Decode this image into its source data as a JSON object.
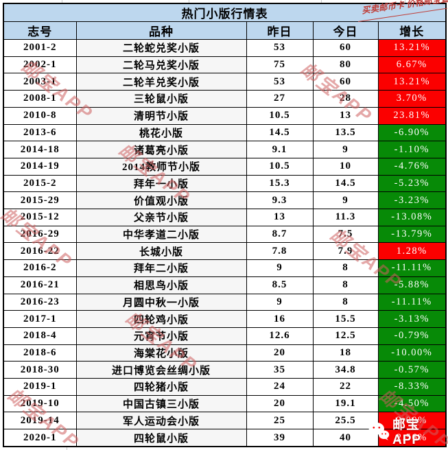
{
  "title": "热门小版行情表",
  "note": "买卖邮币卡 价格邮宝查",
  "watermark": "邮宝APP",
  "logo": {
    "text": "邮宝APP",
    "icon": "wechat-icon"
  },
  "colors": {
    "header_bg": "#BDD7EE",
    "up_red": "#FB0000",
    "down_green": "#078A07",
    "watermark_pink": "#CD5F5F",
    "note_red": "#BE3B35"
  },
  "columns": [
    "志号",
    "品种",
    "昨日",
    "今日",
    "增长"
  ],
  "chart_data": {
    "type": "table",
    "title": "热门小版行情表",
    "categories": [
      "志号",
      "品种",
      "昨日",
      "今日",
      "增长"
    ],
    "rows": "see rows[]"
  },
  "rows": [
    {
      "id": "2001-2",
      "name": "二轮蛇兑奖小版",
      "yesterday": "53",
      "today": "60",
      "change": "13.21%"
    },
    {
      "id": "2002-1",
      "name": "二轮马兑奖小版",
      "yesterday": "75",
      "today": "80",
      "change": "6.67%"
    },
    {
      "id": "2003-1",
      "name": "二轮羊兑奖小版",
      "yesterday": "53",
      "today": "60",
      "change": "13.21%"
    },
    {
      "id": "2008-1",
      "name": "三轮鼠小版",
      "yesterday": "27",
      "today": "28",
      "change": "3.70%"
    },
    {
      "id": "2010-8",
      "name": "清明节小版",
      "yesterday": "10.5",
      "today": "13",
      "change": "23.81%"
    },
    {
      "id": "2013-6",
      "name": "桃花小版",
      "yesterday": "14.5",
      "today": "13.5",
      "change": "-6.90%"
    },
    {
      "id": "2014-18",
      "name": "诸葛亮小版",
      "yesterday": "9.1",
      "today": "9",
      "change": "-1.10%"
    },
    {
      "id": "2014-19",
      "name": "2014教师节小版",
      "yesterday": "10.5",
      "today": "10",
      "change": "-4.76%"
    },
    {
      "id": "2015-2",
      "name": "拜年一小版",
      "yesterday": "15.3",
      "today": "14.5",
      "change": "-5.23%"
    },
    {
      "id": "2015-29",
      "name": "价值观小版",
      "yesterday": "9.3",
      "today": "9",
      "change": "-3.23%"
    },
    {
      "id": "2015-12",
      "name": "父亲节小版",
      "yesterday": "13",
      "today": "11.3",
      "change": "-13.08%"
    },
    {
      "id": "2016-29",
      "name": "中华孝道二小版",
      "yesterday": "8.7",
      "today": "7.5",
      "change": "-13.79%"
    },
    {
      "id": "2016-22",
      "name": "长城小版",
      "yesterday": "7.8",
      "today": "7.9",
      "change": "1.28%"
    },
    {
      "id": "2016-2",
      "name": "拜年二小版",
      "yesterday": "9",
      "today": "8",
      "change": "-11.11%"
    },
    {
      "id": "2016-21",
      "name": "相思鸟小版",
      "yesterday": "8.5",
      "today": "8",
      "change": "-5.88%"
    },
    {
      "id": "2016-23",
      "name": "月圆中秋一小版",
      "yesterday": "9",
      "today": "8",
      "change": "-11.11%"
    },
    {
      "id": "2017-1",
      "name": "四轮鸡小版",
      "yesterday": "16",
      "today": "15.5",
      "change": "-3.13%"
    },
    {
      "id": "2018-4",
      "name": "元宵节小版",
      "yesterday": "12.6",
      "today": "12.5",
      "change": "-0.79%"
    },
    {
      "id": "2018-6",
      "name": "海棠花小版",
      "yesterday": "20",
      "today": "18",
      "change": "-10.00%"
    },
    {
      "id": "2018-30",
      "name": "进口博览会丝绸小版",
      "yesterday": "35",
      "today": "34.8",
      "change": "-0.57%"
    },
    {
      "id": "2019-1",
      "name": "四轮猪小版",
      "yesterday": "24",
      "today": "22",
      "change": "-8.33%"
    },
    {
      "id": "2019-10",
      "name": "中国古镇三小版",
      "yesterday": "20",
      "today": "19.1",
      "change": "-4.50%"
    },
    {
      "id": "2019-14",
      "name": "军人运动会小版",
      "yesterday": "25",
      "today": "25.5",
      "change": "2.00%"
    },
    {
      "id": "2020-1",
      "name": "四轮鼠小版",
      "yesterday": "39",
      "today": "40",
      "change": "2.56%"
    }
  ]
}
